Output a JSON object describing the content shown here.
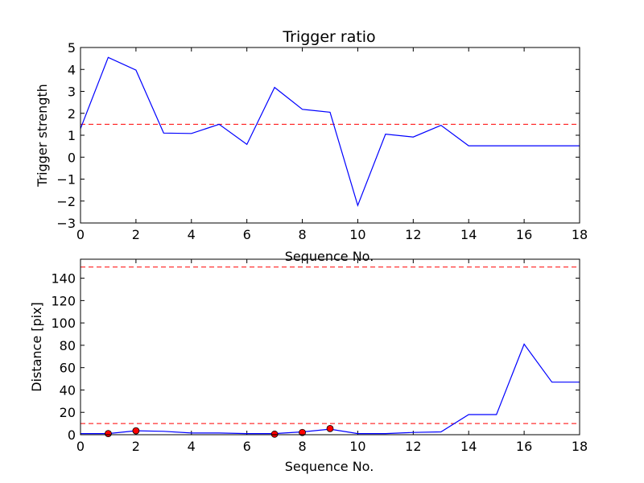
{
  "chart_data": [
    {
      "type": "line",
      "title": "Trigger ratio",
      "xlabel": "Sequence No.",
      "ylabel": "Trigger strength",
      "xlim": [
        0,
        18
      ],
      "ylim": [
        -3,
        5
      ],
      "xticks": [
        0,
        2,
        4,
        6,
        8,
        10,
        12,
        14,
        16,
        18
      ],
      "yticks": [
        -3,
        -2,
        -1,
        0,
        1,
        2,
        3,
        4,
        5
      ],
      "grid": false,
      "series": [
        {
          "color": "#0000ff",
          "style": "solid",
          "x": [
            0,
            1,
            2,
            3,
            4,
            5,
            6,
            7,
            8,
            9,
            10,
            11,
            12,
            13,
            14,
            15,
            16,
            17,
            18
          ],
          "y": [
            1.3,
            4.55,
            3.97,
            1.1,
            1.08,
            1.5,
            0.58,
            3.18,
            2.18,
            2.05,
            -2.2,
            1.05,
            0.92,
            1.45,
            0.52,
            0.52,
            0.52,
            0.52,
            0.52
          ]
        }
      ],
      "hlines": [
        {
          "y": 1.5,
          "color": "#ff0000",
          "style": "dashed"
        }
      ]
    },
    {
      "type": "line",
      "title": "",
      "xlabel": "Sequence No.",
      "ylabel": "Distance [pix]",
      "xlim": [
        0,
        18
      ],
      "ylim": [
        0,
        157
      ],
      "xticks": [
        0,
        2,
        4,
        6,
        8,
        10,
        12,
        14,
        16,
        18
      ],
      "yticks": [
        0,
        20,
        40,
        60,
        80,
        100,
        120,
        140
      ],
      "grid": false,
      "series": [
        {
          "color": "#0000ff",
          "style": "solid",
          "x": [
            0,
            1,
            2,
            3,
            4,
            5,
            6,
            7,
            8,
            9,
            10,
            11,
            12,
            13,
            14,
            15,
            16,
            17,
            18
          ],
          "y": [
            1,
            1,
            3.5,
            3,
            1.5,
            1.5,
            1,
            1,
            2.5,
            5,
            1,
            1,
            2,
            2.5,
            18,
            18,
            81,
            47,
            47
          ]
        }
      ],
      "markers": {
        "color": "#ff0000",
        "x": [
          1,
          2,
          7,
          8,
          9
        ],
        "y": [
          1,
          3.5,
          0.5,
          2,
          5.5
        ]
      },
      "hlines": [
        {
          "y": 150,
          "color": "#ff0000",
          "style": "dashed"
        },
        {
          "y": 10,
          "color": "#ff0000",
          "style": "dashed"
        }
      ]
    }
  ]
}
